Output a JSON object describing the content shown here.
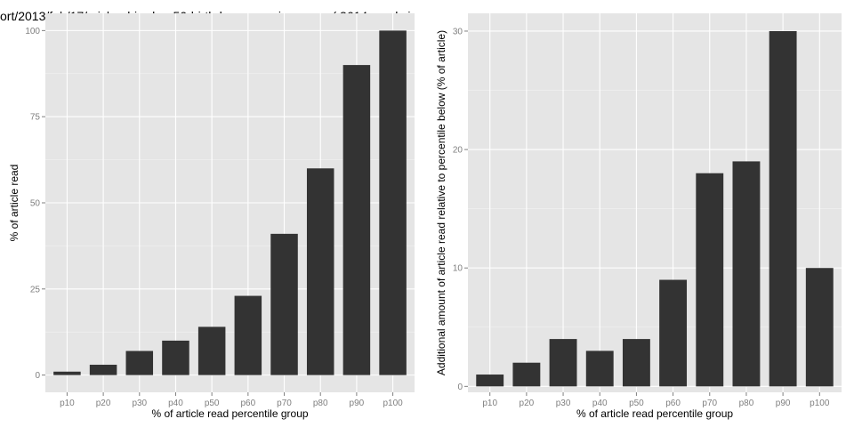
{
  "chart_data": [
    {
      "type": "bar",
      "title": "ort/2013/feb/17/michael-jordan-50-birthday-memories-years ( 3614 words ir",
      "xlabel": "% of article read percentile group",
      "ylabel": "% of article read",
      "categories": [
        "p10",
        "p20",
        "p30",
        "p40",
        "p50",
        "p60",
        "p70",
        "p80",
        "p90",
        "p100"
      ],
      "values": [
        1,
        3,
        7,
        10,
        14,
        23,
        41,
        60,
        90,
        100
      ],
      "ylim": [
        -5,
        105
      ],
      "yticks": [
        0,
        25,
        50,
        75,
        100
      ],
      "grid": true,
      "bar_color": "#333333",
      "panel_color": "#e5e5e5",
      "grid_color": "#ffffff"
    },
    {
      "type": "bar",
      "title": "",
      "xlabel": "% of article read percentile group",
      "ylabel": "Additional amount of article read relative to percentile below (% of article)",
      "categories": [
        "p10",
        "p20",
        "p30",
        "p40",
        "p50",
        "p60",
        "p70",
        "p80",
        "p90",
        "p100"
      ],
      "values": [
        1,
        2,
        4,
        3,
        4,
        9,
        18,
        19,
        30,
        10
      ],
      "ylim": [
        -0.5,
        31.5
      ],
      "yticks": [
        0,
        10,
        20,
        30
      ],
      "grid": true,
      "bar_color": "#333333",
      "panel_color": "#e5e5e5",
      "grid_color": "#ffffff"
    }
  ]
}
